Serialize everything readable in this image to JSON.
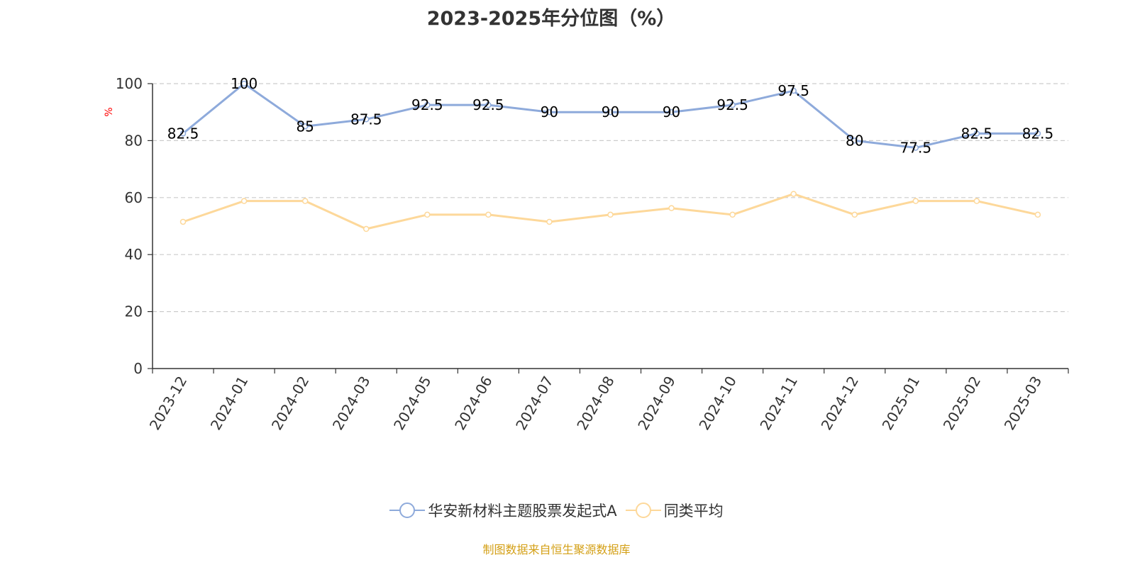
{
  "title": "2023-2025年分位图（%）",
  "source_note": "制图数据来自恒生聚源数据库",
  "chart_data": {
    "type": "line",
    "title": "2023-2025年分位图（%）",
    "xlabel": "",
    "ylabel": "%",
    "ylim": [
      0,
      100
    ],
    "yticks": [
      0,
      20,
      40,
      60,
      80,
      100
    ],
    "grid": true,
    "legend_position": "bottom",
    "categories": [
      "2023-12",
      "2024-01",
      "2024-02",
      "2024-03",
      "2024-05",
      "2024-06",
      "2024-07",
      "2024-08",
      "2024-09",
      "2024-10",
      "2024-11",
      "2024-12",
      "2025-01",
      "2025-02",
      "2025-03"
    ],
    "series": [
      {
        "name": "华安新材料主题股票发起式A",
        "color": "#8eaadb",
        "show_labels": true,
        "values": [
          82.5,
          100,
          85,
          87.5,
          92.5,
          92.5,
          90,
          90,
          90,
          92.5,
          97.5,
          80,
          77.5,
          82.5,
          82.5
        ]
      },
      {
        "name": "同类平均",
        "color": "#fdd89a",
        "show_labels": false,
        "values": [
          51.5,
          58.8,
          58.8,
          49.0,
          54.0,
          54.0,
          51.5,
          54.0,
          56.3,
          54.0,
          61.3,
          54.0,
          58.8,
          58.8,
          54.0
        ]
      }
    ]
  }
}
